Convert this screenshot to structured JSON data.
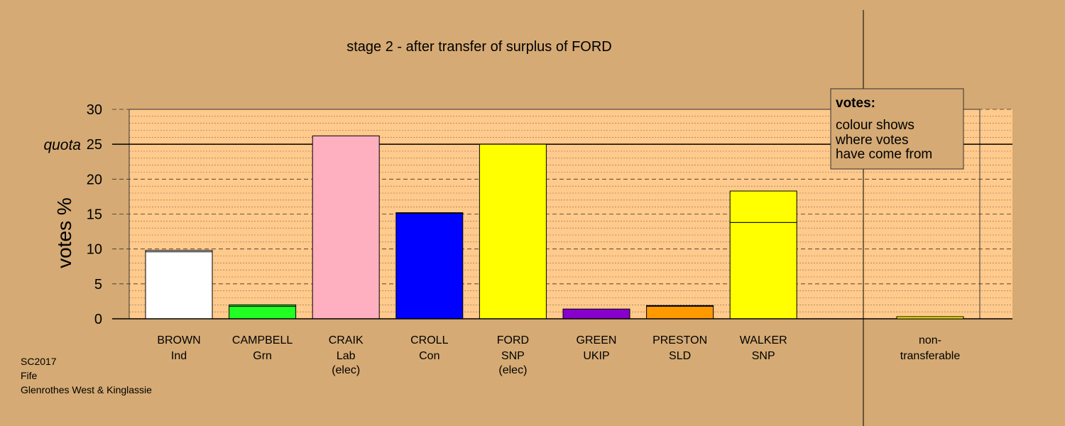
{
  "chart_data": {
    "type": "bar",
    "title": "stage 2 - after transfer of surplus of FORD",
    "ylabel": "votes %",
    "ylim": [
      0,
      30
    ],
    "yticks": [
      "0",
      "5",
      "10",
      "15",
      "20",
      "25",
      "30"
    ],
    "quota": {
      "label": "quota",
      "value": 25
    },
    "bars": [
      {
        "name": "BROWN",
        "party": "Ind",
        "note": "",
        "color": "#ffffff",
        "segments": [
          {
            "value": 9.6,
            "color": "#ffffff"
          },
          {
            "value": 0.2,
            "color": "#ffffff"
          }
        ]
      },
      {
        "name": "CAMPBELL",
        "party": "Grn",
        "note": "",
        "color": "#22ff22",
        "segments": [
          {
            "value": 1.8,
            "color": "#22ff22"
          },
          {
            "value": 0.2,
            "color": "#22ff22"
          }
        ]
      },
      {
        "name": "CRAIK",
        "party": "Lab",
        "note": "(elec)",
        "color": "#ffb0c0",
        "segments": [
          {
            "value": 26.2,
            "color": "#ffb0c0"
          }
        ]
      },
      {
        "name": "CROLL",
        "party": "Con",
        "note": "",
        "color": "#0000ff",
        "segments": [
          {
            "value": 15.1,
            "color": "#0000ff"
          },
          {
            "value": 0.1,
            "color": "#0000ff"
          }
        ]
      },
      {
        "name": "FORD",
        "party": "SNP",
        "note": "(elec)",
        "color": "#ffff00",
        "segments": [
          {
            "value": 25.0,
            "color": "#ffff00"
          }
        ]
      },
      {
        "name": "GREEN",
        "party": "UKIP",
        "note": "",
        "color": "#8800cc",
        "segments": [
          {
            "value": 1.4,
            "color": "#8800cc"
          }
        ]
      },
      {
        "name": "PRESTON",
        "party": "SLD",
        "note": "",
        "color": "#ff9900",
        "segments": [
          {
            "value": 1.8,
            "color": "#ff9900"
          },
          {
            "value": 0.1,
            "color": "#ff9900"
          }
        ]
      },
      {
        "name": "WALKER",
        "party": "SNP",
        "note": "",
        "color": "#ffff00",
        "segments": [
          {
            "value": 13.8,
            "color": "#ffff00"
          },
          {
            "value": 4.5,
            "color": "#ffff00"
          }
        ]
      }
    ],
    "nontransferable": {
      "line1": "non-",
      "line2": "transferable",
      "value": 0.3,
      "color": "#ffff00"
    },
    "legend": {
      "title": "votes:",
      "lines": [
        "colour shows",
        "where votes",
        "have come from"
      ]
    }
  },
  "footer": {
    "line1": "SC2017",
    "line2": "Fife",
    "line3": "Glenrothes West & Kinglassie"
  },
  "colors": {
    "background": "#d5aa74",
    "plot_area": "#ffca8c"
  }
}
